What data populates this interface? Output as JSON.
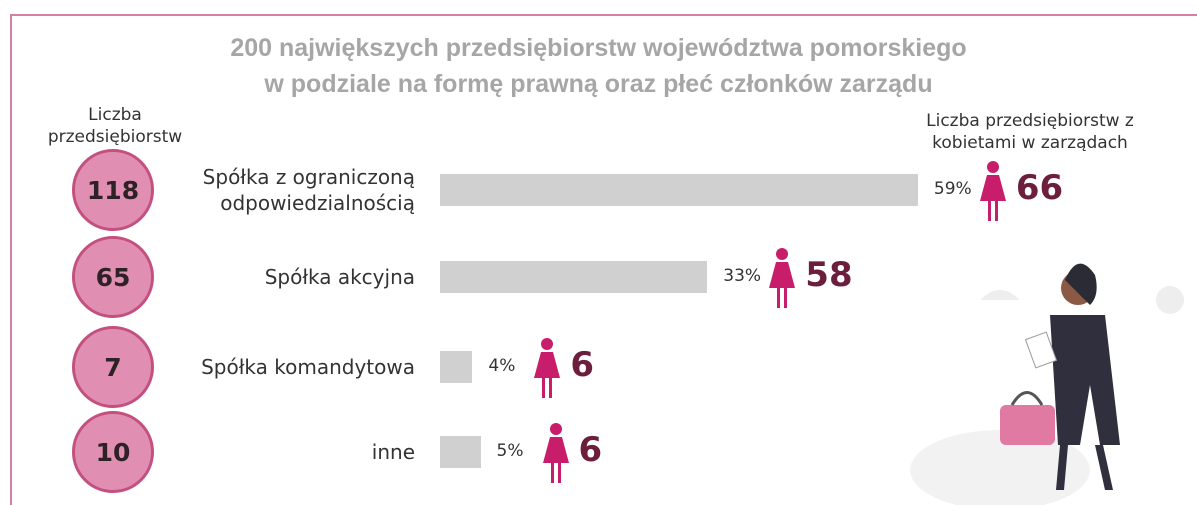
{
  "chart_data": {
    "type": "bar",
    "title": [
      "200 największych przedsiębiorstw województwa pomorskiego",
      "w podziale na formę prawną oraz płeć członków zarządu"
    ],
    "left_header": "Liczba przedsiębiorstw",
    "right_header": "Liczba przedsiębiorstw z kobietami w zarządach",
    "categories": [
      "Spółka z ograniczoną odpowiedzialnością",
      "Spółka akcyjna",
      "Spółka komandytowa",
      "inne"
    ],
    "totals": [
      118,
      65,
      7,
      10
    ],
    "values": [
      59,
      33,
      4,
      5
    ],
    "value_labels": [
      "59%",
      "33%",
      "4%",
      "5%"
    ],
    "women_counts": [
      66,
      58,
      6,
      6
    ],
    "color": "#d0d0d0"
  }
}
